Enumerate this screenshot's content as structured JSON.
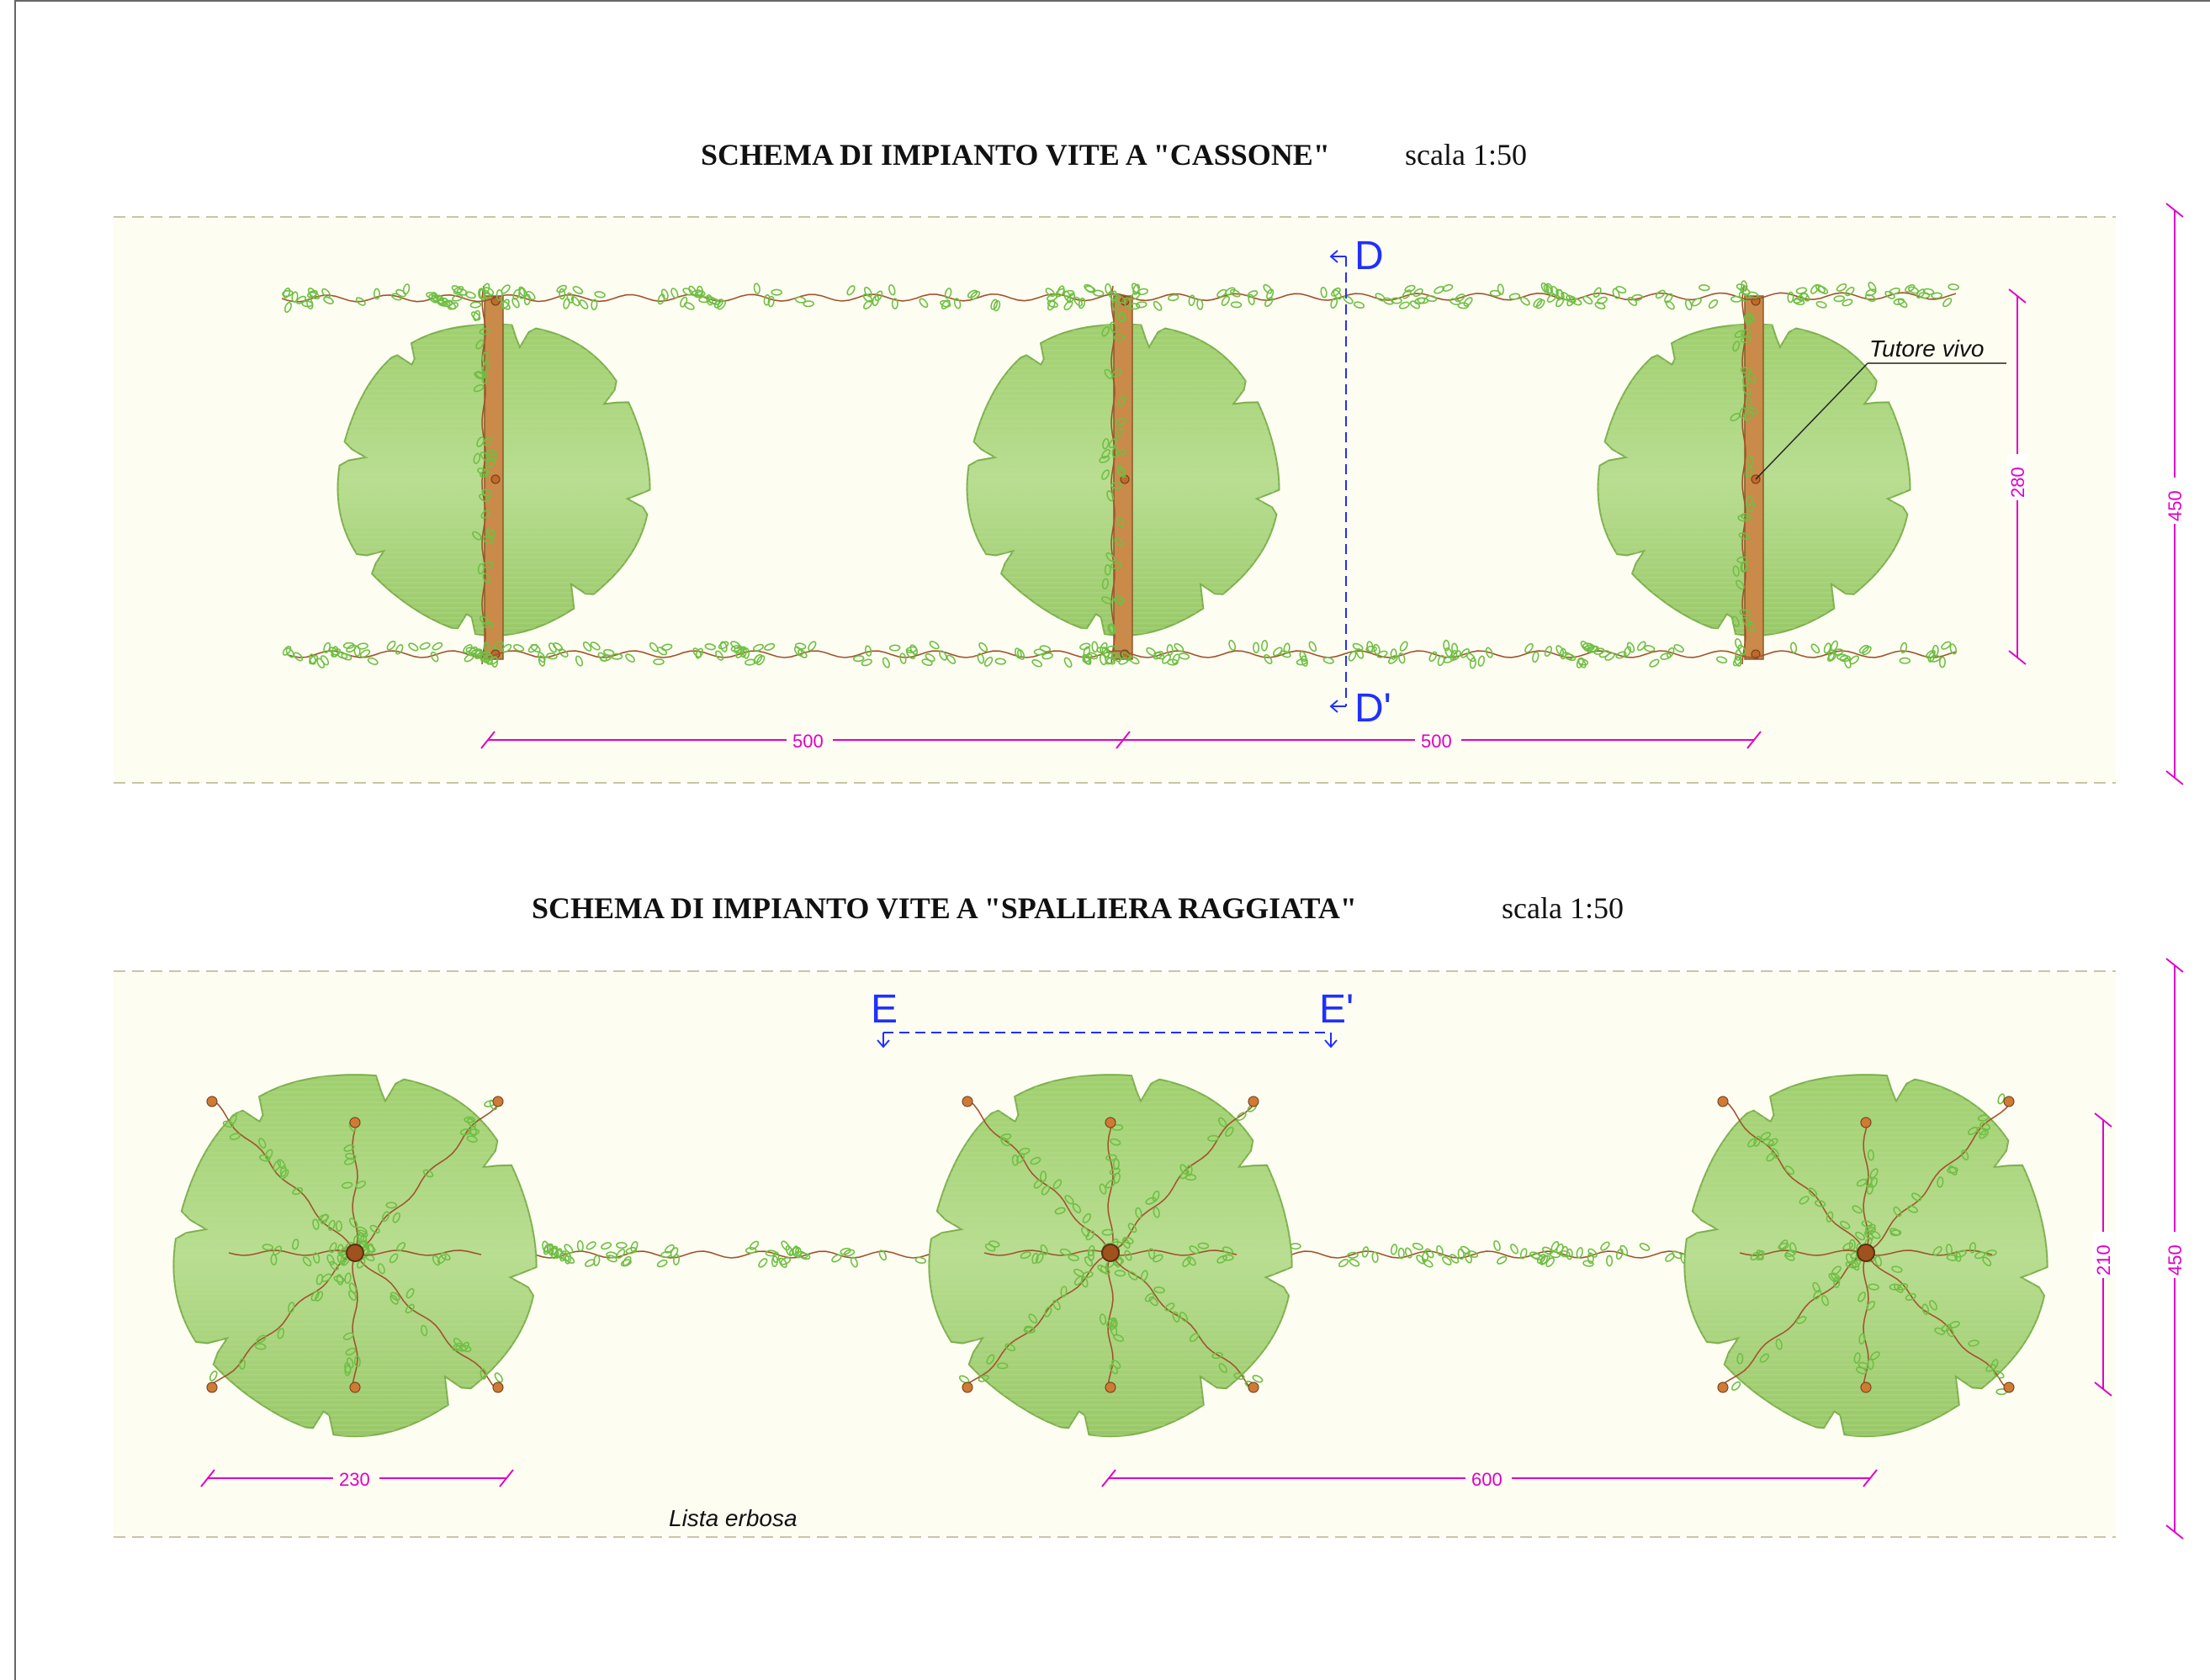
{
  "cassone": {
    "title": "SCHEMA DI IMPIANTO VITE A \"CASSONE\"",
    "scale": "scala 1:50",
    "section_top": "D",
    "section_bottom": "D'",
    "note": "Tutore vivo",
    "dim_spacing": [
      "500",
      "500"
    ],
    "dim_inner": "280",
    "dim_band": "450"
  },
  "spalliera": {
    "title": "SCHEMA DI IMPIANTO VITE A \"SPALLIERA RAGGIATA\"",
    "scale": "scala 1:50",
    "section_left": "E",
    "section_right": "E'",
    "dim_crown": "230",
    "dim_spacing": "600",
    "dim_inner": "210",
    "dim_band": "450",
    "note": "Lista erbosa"
  },
  "colors": {
    "band": "#fdfdf2",
    "band_line": "#c9c4a8",
    "crown_fill": "#a8d47a",
    "crown_stroke": "#7cb04c",
    "leaf": "#6fbf44",
    "vine": "#a0522d",
    "stake": "#c98a4a",
    "dimension": "#e000c8",
    "section": "#2030ff"
  }
}
